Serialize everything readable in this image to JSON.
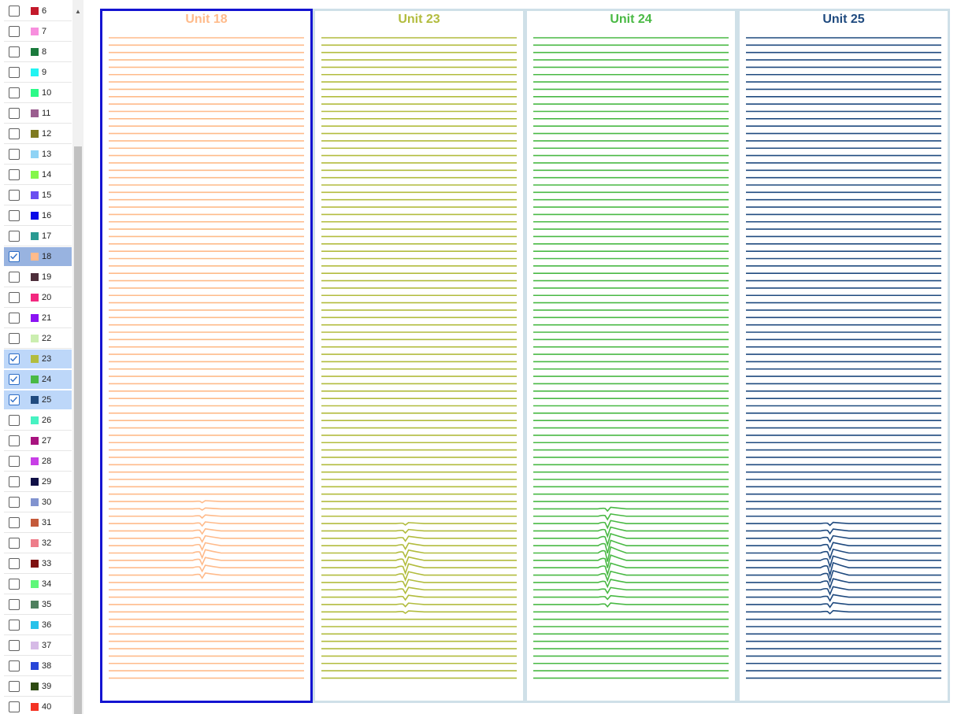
{
  "units": [
    {
      "id": "6",
      "color": "#c3192b",
      "checked": false
    },
    {
      "id": "7",
      "color": "#f78fde",
      "checked": false
    },
    {
      "id": "8",
      "color": "#1a7a3c",
      "checked": false
    },
    {
      "id": "9",
      "color": "#22f4f2",
      "checked": false
    },
    {
      "id": "10",
      "color": "#2bfa88",
      "checked": false
    },
    {
      "id": "11",
      "color": "#9b5d8f",
      "checked": false
    },
    {
      "id": "12",
      "color": "#7f7a1f",
      "checked": false
    },
    {
      "id": "13",
      "color": "#8fd3f5",
      "checked": false
    },
    {
      "id": "14",
      "color": "#85f64b",
      "checked": false
    },
    {
      "id": "15",
      "color": "#6b4ff0",
      "checked": false
    },
    {
      "id": "16",
      "color": "#0a0ae8",
      "checked": false
    },
    {
      "id": "17",
      "color": "#2a9a92",
      "checked": false
    },
    {
      "id": "18",
      "color": "#ffbb8b",
      "checked": true,
      "selected": true
    },
    {
      "id": "19",
      "color": "#4d2e3a",
      "checked": false
    },
    {
      "id": "20",
      "color": "#f3287f",
      "checked": false
    },
    {
      "id": "21",
      "color": "#8b13f3",
      "checked": false
    },
    {
      "id": "22",
      "color": "#cbeeb0",
      "checked": false
    },
    {
      "id": "23",
      "color": "#b2bc3e",
      "checked": true
    },
    {
      "id": "24",
      "color": "#49b944",
      "checked": true
    },
    {
      "id": "25",
      "color": "#1f4a7f",
      "checked": true
    },
    {
      "id": "26",
      "color": "#47f2c2",
      "checked": false
    },
    {
      "id": "27",
      "color": "#a8137f",
      "checked": false
    },
    {
      "id": "28",
      "color": "#c83fe6",
      "checked": false
    },
    {
      "id": "29",
      "color": "#101046",
      "checked": false
    },
    {
      "id": "30",
      "color": "#8193cf",
      "checked": false
    },
    {
      "id": "31",
      "color": "#c45a3a",
      "checked": false
    },
    {
      "id": "32",
      "color": "#ee7d8a",
      "checked": false
    },
    {
      "id": "33",
      "color": "#7e1010",
      "checked": false
    },
    {
      "id": "34",
      "color": "#5ff77a",
      "checked": false
    },
    {
      "id": "35",
      "color": "#4d7f5d",
      "checked": false
    },
    {
      "id": "36",
      "color": "#27c2ea",
      "checked": false
    },
    {
      "id": "37",
      "color": "#d6bae6",
      "checked": false
    },
    {
      "id": "38",
      "color": "#2846d8",
      "checked": false
    },
    {
      "id": "39",
      "color": "#2d4a12",
      "checked": false
    },
    {
      "id": "40",
      "color": "#f43324",
      "checked": false
    }
  ],
  "panels": [
    {
      "title": "Unit 18",
      "color": "#ffbb8b",
      "selected": true
    },
    {
      "title": "Unit 23",
      "color": "#b2bc3e",
      "selected": false
    },
    {
      "title": "Unit 24",
      "color": "#49b944",
      "selected": false
    },
    {
      "title": "Unit 25",
      "color": "#1f4a7f",
      "selected": false
    }
  ]
}
